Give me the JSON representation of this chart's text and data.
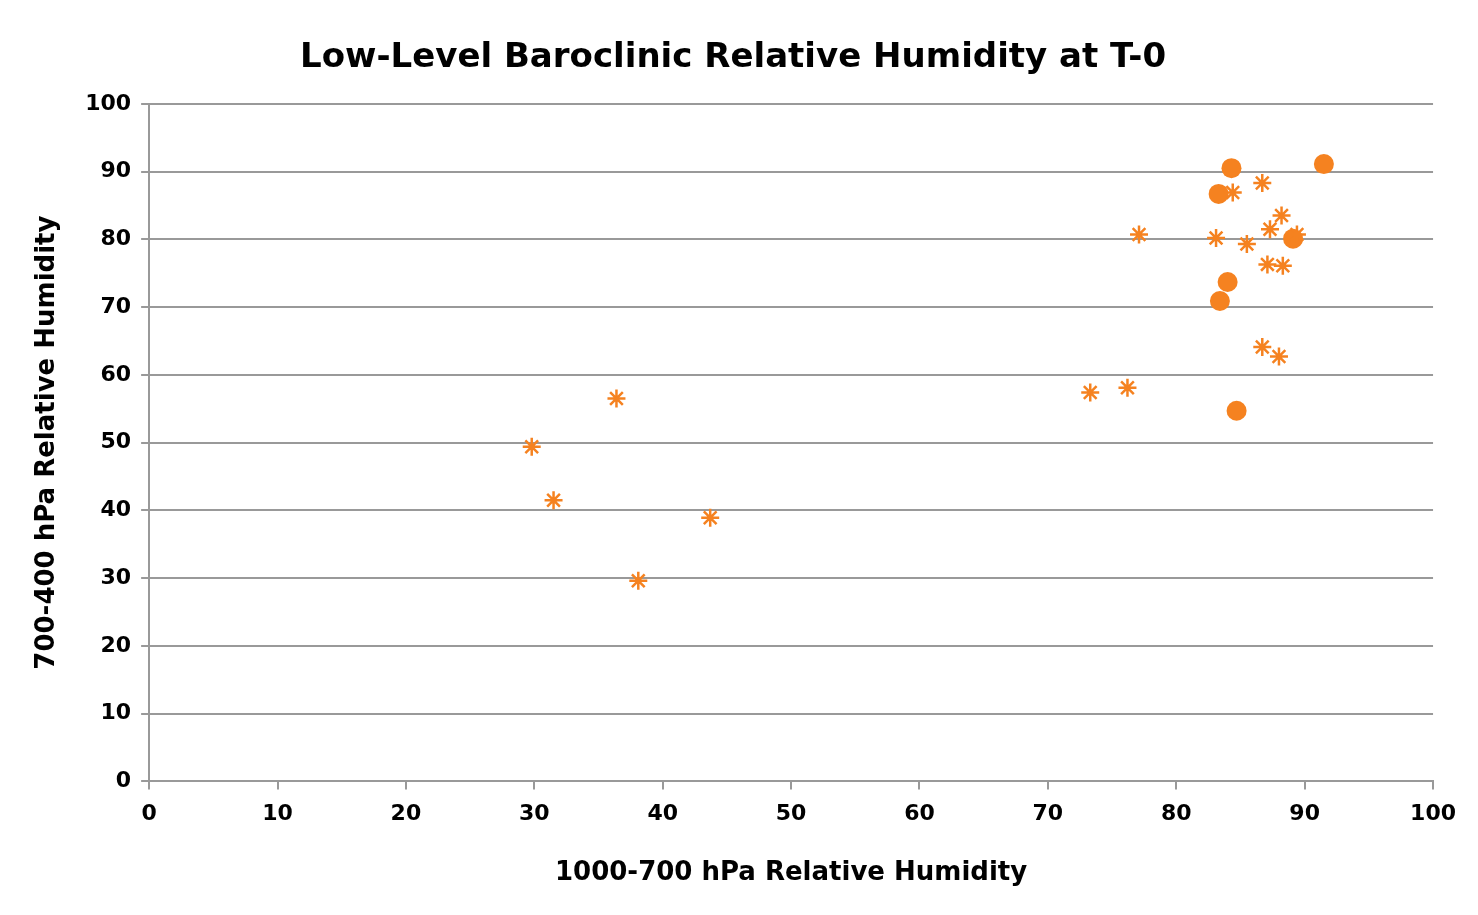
{
  "chart_data": {
    "type": "scatter",
    "title": "Low-Level Baroclinic Relative Humidity at T-0",
    "xlabel": "1000-700 hPa Relative Humidity",
    "ylabel": "700-400 hPa Relative Humidity",
    "xlim": [
      0,
      100
    ],
    "xticks": [
      0,
      10,
      20,
      30,
      40,
      50,
      60,
      70,
      80,
      90,
      100
    ],
    "ylim": [
      0,
      100
    ],
    "yticks": [
      0,
      10,
      20,
      30,
      40,
      50,
      60,
      70,
      80,
      90,
      100
    ],
    "grid": "y",
    "legend": false,
    "series": [
      {
        "color": "#f58220",
        "marker": "cross",
        "x": [
          29.8,
          31.5,
          36.4,
          38.1,
          43.7,
          73.3,
          76.2,
          77.1,
          83.1,
          84.4,
          86.7,
          85.5,
          87.3,
          88.2,
          87.1,
          88.3,
          89.4,
          86.7,
          88.0
        ],
        "values": [
          49.4,
          41.5,
          56.5,
          29.6,
          38.9,
          57.4,
          58.1,
          80.7,
          80.2,
          86.9,
          88.3,
          79.3,
          81.5,
          83.5,
          76.3,
          76.1,
          80.7,
          64.1,
          62.7
        ]
      },
      {
        "color": "#f58220",
        "marker": "circle",
        "x": [
          84.3,
          91.5,
          83.3,
          89.1,
          84.0,
          83.4,
          84.7
        ],
        "values": [
          90.5,
          91.1,
          86.7,
          80.1,
          73.7,
          70.9,
          54.7
        ]
      }
    ]
  }
}
